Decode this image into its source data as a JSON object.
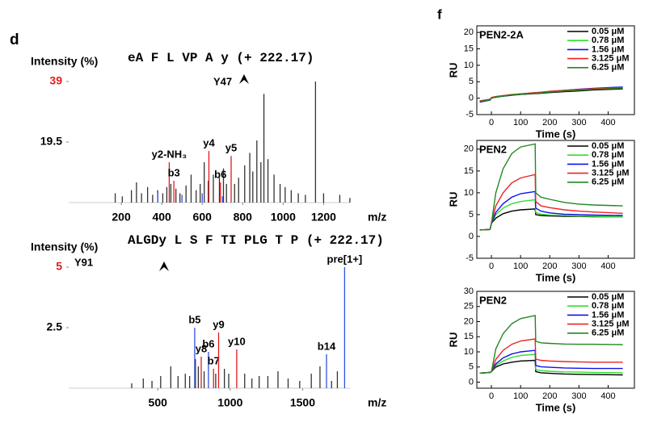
{
  "panel_labels": [
    "d",
    "f"
  ],
  "chart_data": [
    {
      "type": "stem",
      "title": "eA F L VP A y (+ 222.17)",
      "marker_label": "Y47",
      "ylabel": "Intensity (%)",
      "xlabel": "m/z",
      "xlim": [
        -60,
        1490
      ],
      "ylim": [
        0,
        39
      ],
      "xticks": [
        200,
        400,
        600,
        800,
        1000,
        1200
      ],
      "yticks": [
        19.5,
        39
      ],
      "ytick_colors": [
        "#000000",
        "#e41a1c"
      ],
      "series": [
        {
          "color": "#333333",
          "x": [
            170,
            205,
            250,
            275,
            300,
            330,
            355,
            380,
            405,
            425,
            445,
            470,
            490,
            520,
            545,
            570,
            590,
            610,
            630,
            655,
            685,
            705,
            720,
            760,
            780,
            810,
            835,
            850,
            870,
            890,
            905,
            925,
            955,
            985,
            1010,
            1040,
            1075,
            1110,
            1160,
            1200,
            1280,
            1330
          ],
          "values": [
            3,
            2,
            4,
            6.5,
            3,
            5,
            2.5,
            4,
            3,
            5,
            6,
            4.5,
            3,
            5.5,
            9,
            4,
            6,
            13,
            7,
            9,
            8,
            11,
            6,
            6,
            8,
            12,
            16,
            10,
            20,
            13,
            35,
            14,
            9,
            6,
            5,
            4,
            3,
            2.5,
            39,
            3,
            2.5,
            1.5
          ],
          "labels": [
            null,
            null,
            null,
            null,
            null,
            null,
            null,
            null,
            null,
            null,
            null,
            null,
            null,
            null,
            null,
            null,
            null,
            null,
            null,
            null,
            null,
            null,
            null,
            null,
            null,
            null,
            null,
            null,
            null,
            null,
            null,
            null,
            null,
            null,
            null,
            null,
            null,
            null,
            null,
            null,
            null,
            null
          ]
        },
        {
          "color": "#3050e0",
          "x": [
            380,
            500,
            600,
            700
          ],
          "values": [
            3,
            2.5,
            3,
            2
          ],
          "labels": [
            null,
            null,
            null,
            null
          ]
        },
        {
          "color": "#e41a1c",
          "x": [
            437,
            460,
            633,
            690,
            743
          ],
          "values": [
            13,
            7,
            16.6,
            6.5,
            15
          ],
          "labels": [
            "y2-NH₃",
            "b3",
            "y4",
            "b6",
            "y5"
          ]
        }
      ]
    },
    {
      "type": "stem",
      "title": "ALGDy L S F TI PLG T P (+ 222.17)",
      "marker_label": "Y91",
      "ylabel": "Intensity (%)",
      "xlabel": "m/z",
      "xlim": [
        -115,
        2050
      ],
      "ylim": [
        0,
        5
      ],
      "xticks": [
        500,
        1000,
        1500
      ],
      "yticks": [
        2.5,
        5
      ],
      "ytick_colors": [
        "#000000",
        "#e41a1c"
      ],
      "series": [
        {
          "color": "#333333",
          "x": [
            320,
            400,
            460,
            520,
            590,
            640,
            690,
            720,
            760,
            780,
            820,
            900,
            960,
            990,
            1100,
            1150,
            1200,
            1260,
            1330,
            1400,
            1480,
            1560,
            1620,
            1700,
            1740
          ],
          "values": [
            0.2,
            0.4,
            0.3,
            0.5,
            0.9,
            0.5,
            0.6,
            0.5,
            1.2,
            0.9,
            0.7,
            0.6,
            0.8,
            0.6,
            0.6,
            0.4,
            0.5,
            0.5,
            0.7,
            0.4,
            0.3,
            0.6,
            0.9,
            0.3,
            0.7
          ],
          "labels": [
            null,
            null,
            null,
            null,
            null,
            null,
            null,
            null,
            null,
            null,
            null,
            null,
            null,
            null,
            null,
            null,
            null,
            null,
            null,
            null,
            null,
            null,
            null,
            null,
            null
          ]
        },
        {
          "color": "#3050e0",
          "x": [
            755,
            850,
            1665,
            1790
          ],
          "values": [
            2.5,
            1.5,
            1.4,
            5
          ],
          "labels": [
            "b5",
            "b6",
            "b14",
            "pre[1+]"
          ]
        },
        {
          "color": "#e41a1c",
          "x": [
            800,
            885,
            920,
            1045
          ],
          "values": [
            1.3,
            0.8,
            2.3,
            1.6
          ],
          "labels": [
            "y8",
            "b7",
            "y9",
            "y10"
          ]
        }
      ]
    },
    {
      "type": "line",
      "title": "PEN2-2A",
      "ylabel": "RU",
      "xlabel": "Time (s)",
      "xlim": [
        -50,
        490
      ],
      "ylim": [
        -5,
        22
      ],
      "xticks": [
        0,
        100,
        200,
        300,
        400
      ],
      "yticks": [
        -5,
        0,
        5,
        10,
        15,
        20
      ],
      "x": [
        -40,
        -5,
        0,
        15,
        40,
        70,
        100,
        150,
        152,
        170,
        200,
        250,
        300,
        350,
        450
      ],
      "series": [
        {
          "name": "0.05 μM",
          "color": "#000000",
          "values": [
            -1,
            -0.5,
            0,
            0.3,
            0.6,
            0.9,
            1.1,
            1.4,
            1.4,
            1.5,
            1.7,
            2,
            2.2,
            2.5,
            2.8
          ]
        },
        {
          "name": "0.78 μM",
          "color": "#33dd33",
          "values": [
            -1,
            -0.4,
            0.1,
            0.4,
            0.7,
            1,
            1.2,
            1.6,
            1.6,
            1.7,
            1.9,
            2.2,
            2.5,
            2.8,
            3.1
          ]
        },
        {
          "name": "1.56 μM",
          "color": "#1010ee",
          "values": [
            -1.2,
            -0.6,
            0,
            0.4,
            0.7,
            1,
            1.3,
            1.6,
            1.6,
            1.8,
            2,
            2.4,
            2.7,
            3,
            3.4
          ]
        },
        {
          "name": "3.125 μM",
          "color": "#ee2222",
          "values": [
            -0.8,
            -0.3,
            0.2,
            0.5,
            0.8,
            1.1,
            1.3,
            1.7,
            1.7,
            1.8,
            2.1,
            2.4,
            2.6,
            2.9,
            3.2
          ]
        },
        {
          "name": "6.25 μM",
          "color": "#228822",
          "values": [
            -1,
            -0.5,
            0,
            0.4,
            0.7,
            1,
            1.2,
            1.5,
            1.5,
            1.6,
            1.9,
            2.2,
            2.4,
            2.7,
            3
          ]
        }
      ]
    },
    {
      "type": "line",
      "title": "PEN2",
      "ylabel": "RU",
      "xlabel": "Time (s)",
      "xlim": [
        -50,
        490
      ],
      "ylim": [
        -5,
        22
      ],
      "xticks": [
        0,
        100,
        200,
        300,
        400
      ],
      "yticks": [
        -5,
        0,
        5,
        10,
        15,
        20
      ],
      "x": [
        -40,
        -5,
        0,
        15,
        40,
        70,
        100,
        150,
        152,
        170,
        200,
        250,
        300,
        350,
        450
      ],
      "series": [
        {
          "name": "0.05 μM",
          "color": "#000000",
          "values": [
            1.5,
            1.6,
            3,
            4.2,
            5.2,
            5.8,
            6.1,
            6.3,
            5,
            4.8,
            4.7,
            4.6,
            4.6,
            4.5,
            4.5
          ]
        },
        {
          "name": "0.78 μM",
          "color": "#33dd33",
          "values": [
            1.5,
            1.6,
            3,
            5,
            6.5,
            7.5,
            8,
            8.4,
            5.5,
            5.1,
            4.9,
            4.8,
            4.7,
            4.6,
            4.5
          ]
        },
        {
          "name": "1.56 μM",
          "color": "#1010ee",
          "values": [
            1.5,
            1.6,
            3,
            5.5,
            7.5,
            9,
            9.8,
            10.3,
            6.5,
            5.8,
            5.4,
            5.1,
            5,
            4.9,
            4.8
          ]
        },
        {
          "name": "3.125 μM",
          "color": "#ee2222",
          "values": [
            1.5,
            1.6,
            3,
            7,
            10,
            12.3,
            13.4,
            14.2,
            8,
            7,
            6.6,
            6.1,
            5.8,
            5.6,
            5.3
          ]
        },
        {
          "name": "6.25 μM",
          "color": "#228822",
          "values": [
            1.5,
            1.6,
            3,
            10,
            15.5,
            19,
            20.5,
            21.2,
            10,
            9,
            8.5,
            7.8,
            7.4,
            7.2,
            7
          ]
        }
      ]
    },
    {
      "type": "line",
      "title": "PEN2",
      "ylabel": "RU",
      "xlabel": "Time (s)",
      "xlim": [
        -50,
        490
      ],
      "ylim": [
        -2,
        30
      ],
      "xticks": [
        0,
        100,
        200,
        300,
        400
      ],
      "yticks": [
        0,
        5,
        10,
        15,
        20,
        25,
        30
      ],
      "x": [
        -40,
        -5,
        0,
        15,
        40,
        70,
        100,
        150,
        152,
        170,
        200,
        250,
        300,
        350,
        450
      ],
      "series": [
        {
          "name": "0.05 μM",
          "color": "#000000",
          "values": [
            3,
            3.2,
            3.5,
            5,
            6,
            6.6,
            7,
            7.2,
            3.5,
            3.1,
            2.9,
            2.7,
            2.6,
            2.5,
            2.4
          ]
        },
        {
          "name": "0.78 μM",
          "color": "#33dd33",
          "values": [
            3,
            3.2,
            3.5,
            5.5,
            7,
            8.2,
            8.8,
            9.2,
            4.2,
            3.8,
            3.6,
            3.4,
            3.3,
            3.2,
            3.1
          ]
        },
        {
          "name": "1.56 μM",
          "color": "#1010ee",
          "values": [
            3,
            3.2,
            3.5,
            6,
            8,
            9.3,
            10,
            10.5,
            5.5,
            5.1,
            4.9,
            4.7,
            4.6,
            4.5,
            4.5
          ]
        },
        {
          "name": "3.125 μM",
          "color": "#ee2222",
          "values": [
            3,
            3.2,
            3.5,
            7.5,
            10.5,
            12.5,
            13.6,
            14.3,
            7.6,
            7.2,
            7,
            6.8,
            6.7,
            6.6,
            6.6
          ]
        },
        {
          "name": "6.25 μM",
          "color": "#228822",
          "values": [
            3,
            3.2,
            3.5,
            11,
            16,
            19.3,
            21,
            22,
            13.5,
            13,
            12.8,
            12.6,
            12.5,
            12.5,
            12.4
          ]
        }
      ]
    }
  ]
}
